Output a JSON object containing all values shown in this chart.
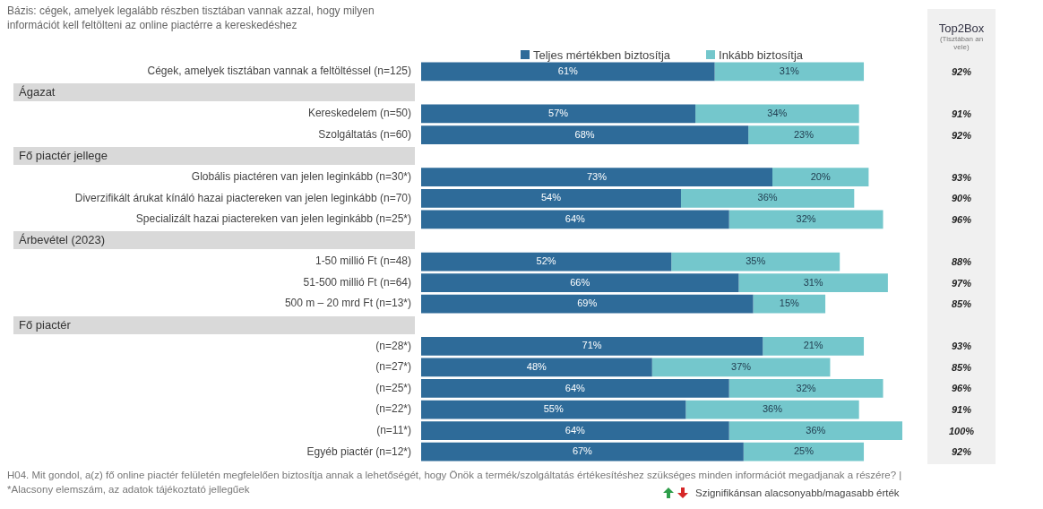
{
  "chart_data": {
    "type": "bar",
    "orientation": "horizontal",
    "stacked": true,
    "title": "Bázis: cégek, amelyek legalább részben tisztában vannak azzal, hogy milyen információt kell feltölteni az online piactérre a kereskedéshez",
    "categories": [
      "Cégek, amelyek tisztában vannak a feltöltéssel (n=125)",
      null,
      "Kereskedelem (n=50)",
      "Szolgáltatás (n=60)",
      null,
      "Globális piactéren van jelen leginkább (n=30*)",
      "Diverzifikált árukat kínáló hazai piactereken van jelen leginkább (n=70)",
      "Specializált hazai piactereken van jelen leginkább (n=25*)",
      null,
      "1-50 millió Ft (n=48)",
      "51-500 millió Ft (n=64)",
      "500 m – 20 mrd Ft (n=13*)",
      null,
      "(n=28*)",
      "(n=27*)",
      "(n=25*)",
      "(n=22*)",
      "(n=11*)",
      "Egyéb piactér (n=12*)"
    ],
    "series": [
      {
        "name": "Teljes mértékben biztosítja",
        "color": "#2e6b99",
        "values": [
          61,
          null,
          57,
          68,
          null,
          73,
          54,
          64,
          null,
          52,
          66,
          69,
          null,
          71,
          48,
          64,
          55,
          64,
          67
        ],
        "value_labels": [
          "61%",
          null,
          "57%",
          "68%",
          null,
          "73%",
          "54%",
          "64%",
          null,
          "52%",
          "66%",
          "69%",
          null,
          "71%",
          "48%",
          "64%",
          "55%",
          "64%",
          "67%"
        ]
      },
      {
        "name": "Inkább biztosítja",
        "color": "#74c7cc",
        "values": [
          31,
          null,
          34,
          23,
          null,
          20,
          36,
          32,
          null,
          35,
          31,
          15,
          null,
          21,
          37,
          32,
          36,
          36,
          25
        ],
        "value_labels": [
          "31%",
          null,
          "34%",
          "23%",
          null,
          "20%",
          "36%",
          "32%",
          null,
          "35%",
          "31%",
          "15%",
          null,
          "21%",
          "37%",
          "32%",
          "36%",
          "36%",
          "25%"
        ]
      }
    ],
    "tick_labels": "y",
    "legend": "top",
    "annotations": [
      "Ágazat",
      "Fő piactér jellege",
      "Árbevétel (2023)",
      "Fő piactér",
      "Top2Box",
      "(Tisztában an vele)",
      "92%",
      "91%",
      "92%",
      "93%",
      "90%",
      "96%",
      "88%",
      "97%",
      "85%",
      "93%",
      "85%",
      "96%",
      "91%",
      "100%",
      "92%",
      "H04. Mit gondol, a(z) fő online piactér felületén megfelelően biztosítja annak a lehetőségét, hogy Önök a termék/szolgáltatás értékesítéshez szükséges minden információt megadjanak a részére? | *Alacsony elemszám, az adatok tájékoztató jellegűek",
      "Szignifikánsan alacsonyabb/magasabb érték"
    ]
  }
}
